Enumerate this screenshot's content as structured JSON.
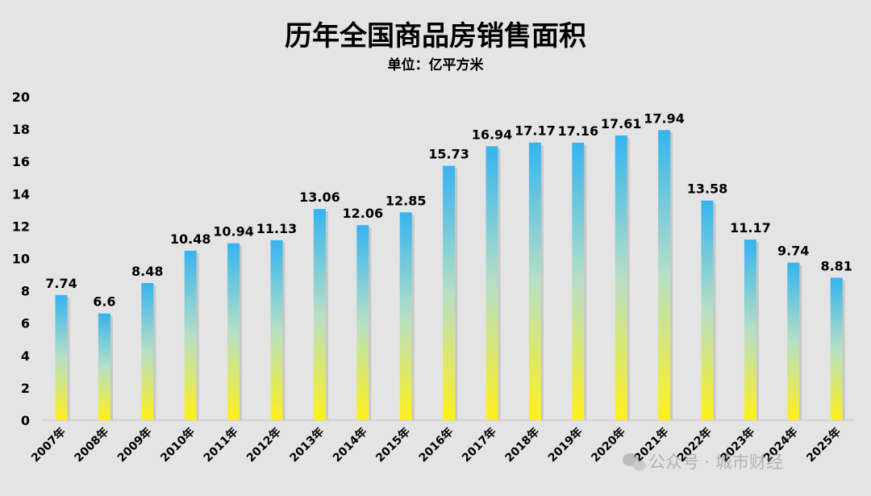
{
  "chart_data": {
    "type": "bar",
    "title": "历年全国商品房销售面积",
    "subtitle": "单位：亿平方米",
    "categories": [
      "2007年",
      "2008年",
      "2009年",
      "2010年",
      "2011年",
      "2012年",
      "2013年",
      "2014年",
      "2015年",
      "2016年",
      "2017年",
      "2018年",
      "2019年",
      "2020年",
      "2021年",
      "2022年",
      "2023年",
      "2024年",
      "2025年"
    ],
    "values": [
      7.74,
      6.6,
      8.48,
      10.48,
      10.94,
      11.13,
      13.06,
      12.06,
      12.85,
      15.73,
      16.94,
      17.17,
      17.16,
      17.61,
      17.94,
      13.58,
      11.17,
      9.74,
      8.81
    ],
    "value_labels": [
      "7.74",
      "6.6",
      "8.48",
      "10.48",
      "10.94",
      "11.13",
      "13.06",
      "12.06",
      "12.85",
      "15.73",
      "16.94",
      "17.17",
      "17.16",
      "17.61",
      "17.94",
      "13.58",
      "11.17",
      "9.74",
      "8.81"
    ],
    "ylim": [
      0,
      20
    ],
    "yticks": [
      "0",
      "2",
      "4",
      "6",
      "8",
      "10",
      "12",
      "14",
      "16",
      "18",
      "20"
    ],
    "grid": false,
    "legend": "none",
    "bar_gradient": [
      "#35b4ef",
      "#b6dfc6",
      "#fff01c"
    ]
  },
  "watermark": "公众号 · 城市财经"
}
